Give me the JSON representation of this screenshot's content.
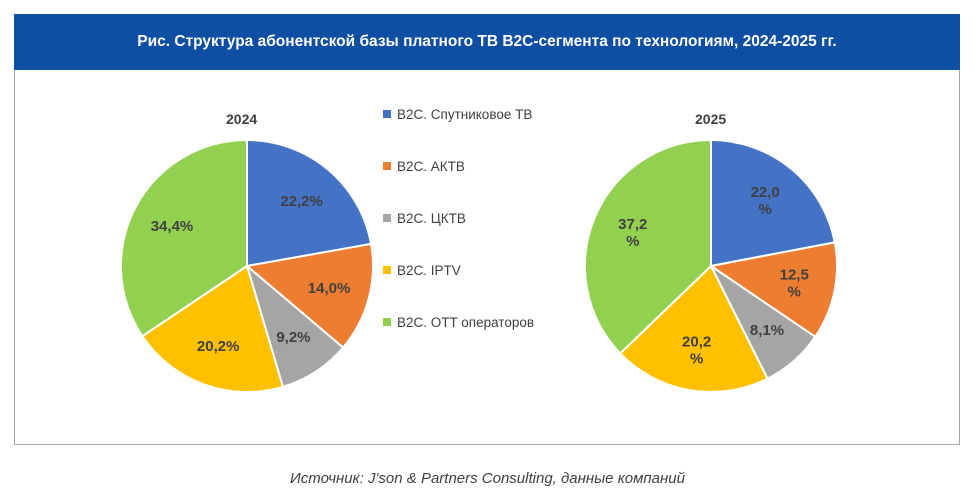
{
  "header": {
    "title": "Рис. Структура абонентской базы платного ТВ B2C-сегмента по технологиям, 2024-2025 гг."
  },
  "legend": [
    {
      "label": "B2C. Спутниковое ТВ",
      "color": "#4472c4"
    },
    {
      "label": "B2C. АКТВ",
      "color": "#ed7d31"
    },
    {
      "label": "B2C. ЦКТВ",
      "color": "#a5a5a5"
    },
    {
      "label": "B2C. IPTV",
      "color": "#ffc000"
    },
    {
      "label": "B2C. OTT операторов",
      "color": "#92d050"
    }
  ],
  "chart_data": [
    {
      "type": "pie",
      "title": "2024",
      "categories": [
        "B2C. Спутниковое ТВ",
        "B2C. АКТВ",
        "B2C. ЦКТВ",
        "B2C. IPTV",
        "B2C. OTT операторов"
      ],
      "values": [
        22.2,
        14.0,
        9.2,
        20.2,
        34.4
      ],
      "data_labels": [
        "22,2%",
        "14,0%",
        "9,2%",
        "20,2%",
        "34,4%"
      ]
    },
    {
      "type": "pie",
      "title": "2025",
      "categories": [
        "B2C. Спутниковое ТВ",
        "B2C. АКТВ",
        "B2C. ЦКТВ",
        "B2C. IPTV",
        "B2C. OTT операторов"
      ],
      "values": [
        22.0,
        12.5,
        8.1,
        20.2,
        37.2
      ],
      "data_labels": [
        [
          "22,0",
          "%"
        ],
        [
          "12,5",
          "%"
        ],
        [
          "8,1%"
        ],
        [
          "20,2",
          "%"
        ],
        [
          "37,2",
          "%"
        ]
      ]
    }
  ],
  "source": "Источник: J'son & Partners Consulting, данные компаний"
}
